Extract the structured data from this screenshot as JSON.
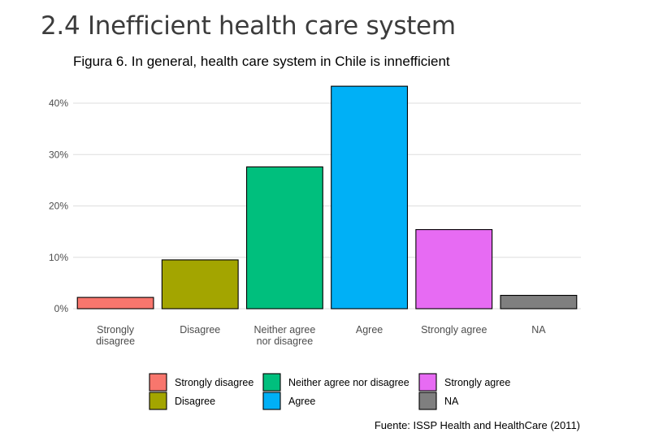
{
  "slide": {
    "title": "2.4 Inefficient health care system",
    "caption": "Fuente: ISSP Health and HealthCare (2011)"
  },
  "chart_data": {
    "type": "bar",
    "title": "Figura 6. In general, health care system in Chile is innefficient",
    "xlabel": "",
    "ylabel": "",
    "categories": [
      "Strongly disagree",
      "Disagree",
      "Neither agree nor disagree",
      "Agree",
      "Strongly agree",
      "NA"
    ],
    "category_tick_lines": [
      [
        "Strongly",
        "disagree"
      ],
      [
        "Disagree"
      ],
      [
        "Neither agree",
        "nor disagree"
      ],
      [
        "Agree"
      ],
      [
        "Strongly agree"
      ],
      [
        "NA"
      ]
    ],
    "values": [
      2.2,
      9.5,
      27.6,
      43.3,
      15.4,
      2.6
    ],
    "colors": [
      "#F8766D",
      "#A3A500",
      "#00BF7D",
      "#00B0F6",
      "#E76BF3",
      "#7F7F7F"
    ],
    "ylim": [
      0,
      45
    ],
    "yticks": [
      0,
      10,
      20,
      30,
      40
    ],
    "ytick_labels": [
      "0%",
      "10%",
      "20%",
      "30%",
      "40%"
    ],
    "grid": true,
    "legend": {
      "position": "bottom",
      "entries": [
        "Strongly disagree",
        "Disagree",
        "Neither agree nor disagree",
        "Agree",
        "Strongly agree",
        "NA"
      ]
    }
  }
}
